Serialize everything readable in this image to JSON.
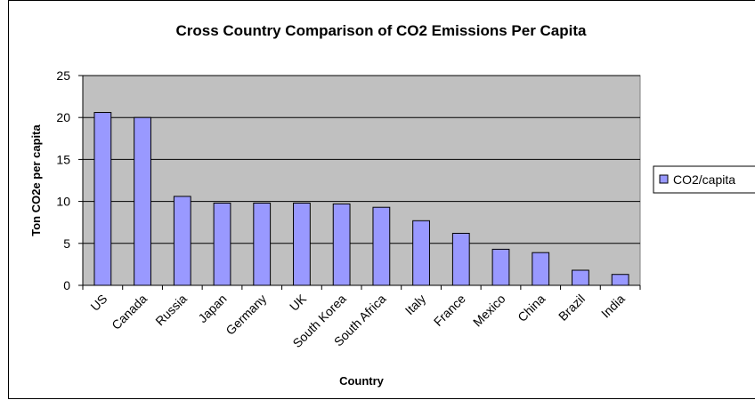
{
  "chart_data": {
    "type": "bar",
    "title": "Cross Country Comparison of CO2 Emissions Per Capita",
    "xlabel": "Country",
    "ylabel": "Ton CO2e per capita",
    "categories": [
      "US",
      "Canada",
      "Russia",
      "Japan",
      "Germany",
      "UK",
      "South Korea",
      "South Africa",
      "Italy",
      "France",
      "Mexico",
      "China",
      "Brazil",
      "India"
    ],
    "series": [
      {
        "name": "CO2/capita",
        "values": [
          20.6,
          20.0,
          10.6,
          9.8,
          9.8,
          9.8,
          9.7,
          9.3,
          7.7,
          6.2,
          4.3,
          3.9,
          1.8,
          1.3
        ]
      }
    ],
    "ylim": [
      0,
      25
    ],
    "yticks": [
      "0",
      "5",
      "10",
      "15",
      "20",
      "25"
    ],
    "grid": true,
    "legend_position": "right",
    "colors": {
      "plot_background": "#c0c0c0",
      "bar_fill": "#9999ff",
      "bar_stroke": "#000000",
      "gridline": "#000000"
    }
  }
}
